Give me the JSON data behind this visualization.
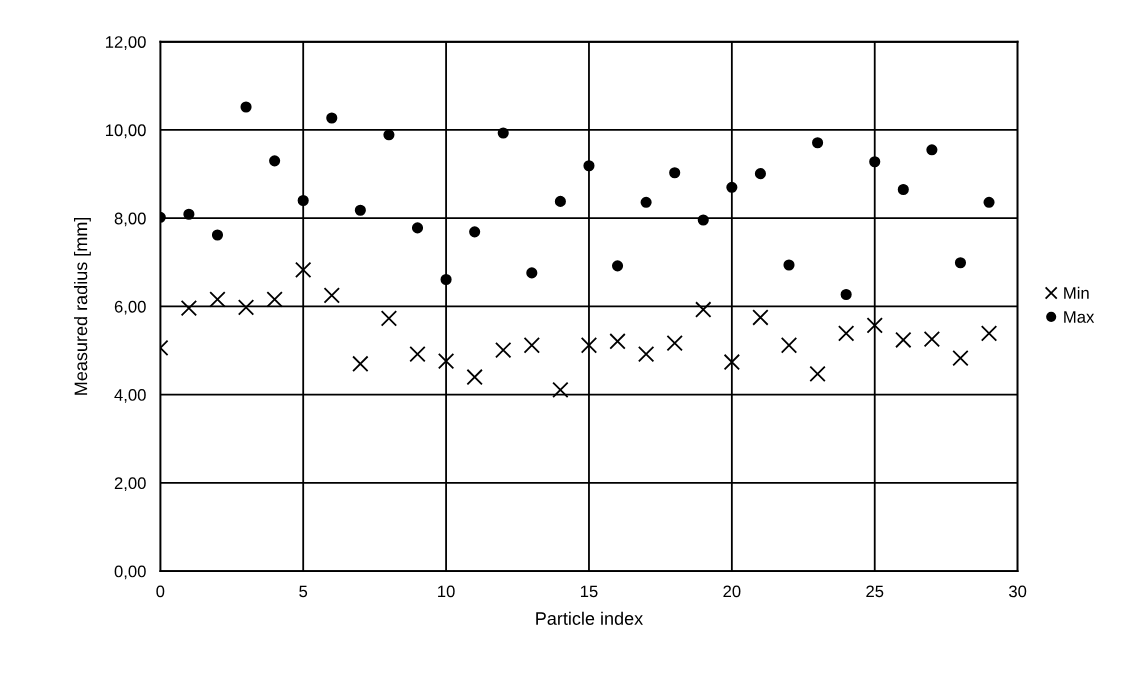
{
  "chart_data": {
    "type": "scatter",
    "xlabel": "Particle index",
    "ylabel": "Measured radius [mm]",
    "x": [
      0,
      1,
      2,
      3,
      4,
      5,
      6,
      7,
      8,
      9,
      10,
      11,
      12,
      13,
      14,
      15,
      16,
      17,
      18,
      19,
      20,
      21,
      22,
      23,
      24,
      25,
      26,
      27,
      28,
      29
    ],
    "series": [
      {
        "name": "Min",
        "color": "#000000",
        "marker": "cross",
        "values": [
          5.06,
          5.96,
          6.16,
          5.98,
          6.16,
          6.83,
          6.25,
          4.7,
          5.73,
          4.92,
          4.76,
          4.4,
          5.01,
          5.12,
          4.11,
          5.12,
          5.21,
          4.92,
          5.17,
          5.93,
          4.74,
          5.75,
          5.12,
          4.47,
          5.39,
          5.57,
          5.24,
          5.26,
          4.83,
          5.39
        ]
      },
      {
        "name": "Max",
        "color": "#000000",
        "marker": "circle",
        "values": [
          8.02,
          8.09,
          7.62,
          10.52,
          9.3,
          8.4,
          10.27,
          8.18,
          9.89,
          7.78,
          6.61,
          7.69,
          9.93,
          6.76,
          8.38,
          9.19,
          6.92,
          8.36,
          9.03,
          7.96,
          8.7,
          9.01,
          6.94,
          9.71,
          6.27,
          9.28,
          8.65,
          9.55,
          6.99,
          8.36
        ]
      }
    ],
    "xlim": [
      0,
      30
    ],
    "xticks": [
      0,
      5,
      10,
      15,
      20,
      25,
      30
    ],
    "ylim": [
      0,
      12
    ],
    "yticks": [
      {
        "value": 0,
        "label": "0,00"
      },
      {
        "value": 2,
        "label": "2,00"
      },
      {
        "value": 4,
        "label": "4,00"
      },
      {
        "value": 6,
        "label": "6,00"
      },
      {
        "value": 8,
        "label": "8,00"
      },
      {
        "value": 10,
        "label": "10,00"
      },
      {
        "value": 12,
        "label": "12,00"
      }
    ],
    "grid": true,
    "legend": "right"
  }
}
